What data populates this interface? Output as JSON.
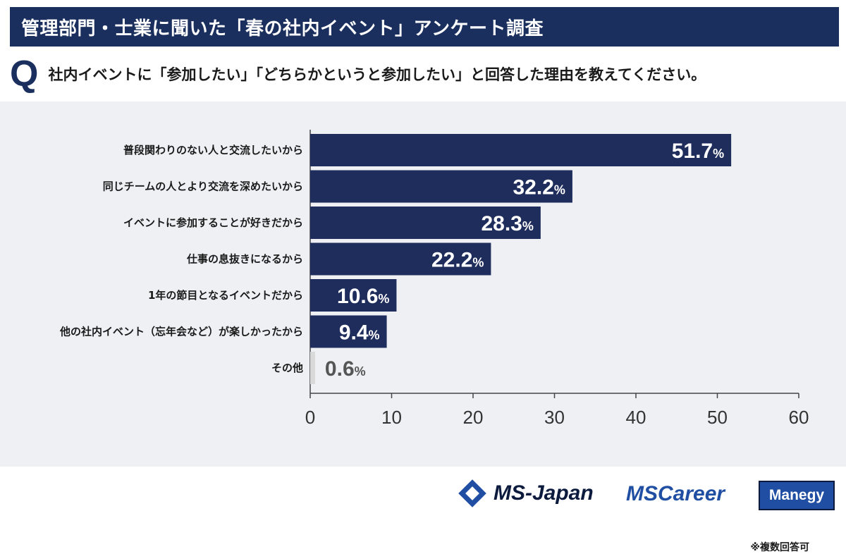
{
  "header": {
    "title": "管理部門・士業に聞いた「春の社内イベント」アンケート調査",
    "q_mark": "Q",
    "question": "社内イベントに「参加したい」「どちらかというと参加したい」と回答した理由を教えてください。"
  },
  "chart_data": {
    "type": "bar",
    "orientation": "horizontal",
    "categories": [
      "普段関わりのない人と交流したいから",
      "同じチームの人とより交流を深めたいから",
      "イベントに参加することが好きだから",
      "仕事の息抜きになるから",
      "1年の節目となるイベントだから",
      "他の社内イベント（忘年会など）が楽しかったから",
      "その他"
    ],
    "values": [
      51.7,
      32.2,
      28.3,
      22.2,
      10.6,
      9.4,
      0.6
    ],
    "value_labels": [
      "51.7",
      "32.2",
      "28.3",
      "22.2",
      "10.6",
      "9.4",
      "0.6"
    ],
    "value_suffix": "%",
    "xlim": [
      0,
      60
    ],
    "xticks": [
      0,
      10,
      20,
      30,
      40,
      50,
      60
    ],
    "xtick_labels": [
      "0",
      "10",
      "20",
      "30",
      "40",
      "50",
      "60"
    ],
    "note": "※複数回答可",
    "colors": {
      "bar": "#1f2d5c",
      "bar_other": "#d9d9d9",
      "label_inside": "#ffffff",
      "label_outside": "#555555"
    }
  },
  "footer": {
    "logo_ms_japan": "MS-Japan",
    "logo_ms_career": "MSCareer",
    "logo_manegy": "Manegy"
  }
}
